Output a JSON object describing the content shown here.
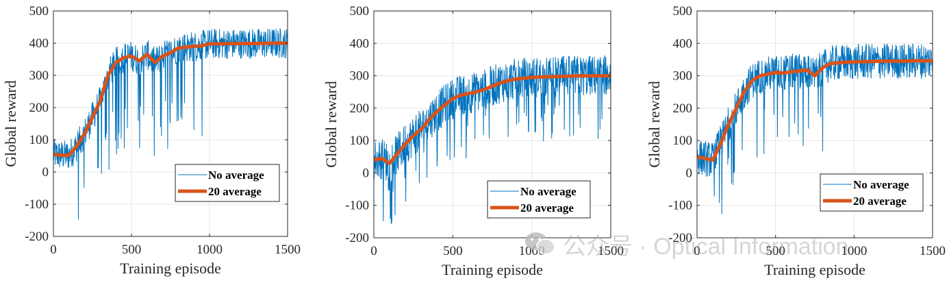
{
  "colors": {
    "raw": "#0072BD",
    "avg": "#D95319",
    "grid": "#e6e6e6",
    "axis": "#262626"
  },
  "watermark": {
    "text": "公众号 · Optical Information",
    "icon": "wechat-icon"
  },
  "chart_data": [
    {
      "type": "line",
      "xlabel": "Training episode",
      "ylabel": "Global reward",
      "xlim": [
        0,
        1500
      ],
      "ylim": [
        -200,
        500
      ],
      "xticks": [
        "0",
        "500",
        "1000",
        "1500"
      ],
      "yticks": [
        "-200",
        "-100",
        "0",
        "100",
        "200",
        "300",
        "400",
        "500"
      ],
      "grid": true,
      "legend": {
        "placement": "lower-right",
        "entries": [
          "No average",
          "20 average"
        ]
      },
      "series": [
        {
          "name": "No average",
          "style": "thin",
          "noise": 30,
          "dip_depth": 300,
          "dip_ranges": [
            [
              150,
              900
            ],
            [
              950,
              955
            ]
          ]
        },
        {
          "name": "20 average",
          "style": "thick",
          "x": [
            0,
            50,
            100,
            150,
            200,
            250,
            300,
            350,
            400,
            450,
            500,
            550,
            600,
            650,
            700,
            750,
            800,
            850,
            900,
            950,
            1000,
            1100,
            1200,
            1300,
            1400,
            1500
          ],
          "y": [
            55,
            52,
            52,
            80,
            120,
            170,
            220,
            300,
            340,
            355,
            360,
            345,
            365,
            340,
            360,
            370,
            385,
            388,
            390,
            392,
            398,
            398,
            399,
            399,
            400,
            400
          ]
        }
      ]
    },
    {
      "type": "line",
      "xlabel": "Training episode",
      "ylabel": "Global reward",
      "xlim": [
        0,
        1500
      ],
      "ylim": [
        -200,
        500
      ],
      "xticks": [
        "0",
        "500",
        "1000",
        "1500"
      ],
      "yticks": [
        "-200",
        "-100",
        "0",
        "100",
        "200",
        "300",
        "400",
        "500"
      ],
      "grid": true,
      "legend": {
        "placement": "lower-right",
        "entries": [
          "No average",
          "20 average"
        ]
      },
      "series": [
        {
          "name": "No average",
          "style": "thin",
          "noise": 40,
          "dip_depth": 200,
          "dip_ranges": [
            [
              60,
              1450
            ]
          ]
        },
        {
          "name": "20 average",
          "style": "thick",
          "x": [
            0,
            50,
            100,
            150,
            200,
            250,
            300,
            350,
            400,
            450,
            500,
            550,
            600,
            650,
            700,
            750,
            800,
            850,
            900,
            950,
            1000,
            1100,
            1200,
            1300,
            1400,
            1500
          ],
          "y": [
            40,
            45,
            30,
            60,
            90,
            115,
            135,
            165,
            190,
            210,
            230,
            240,
            245,
            250,
            258,
            268,
            278,
            285,
            290,
            292,
            295,
            297,
            298,
            300,
            300,
            300
          ]
        }
      ]
    },
    {
      "type": "line",
      "xlabel": "Training episode",
      "ylabel": "Global reward",
      "xlim": [
        0,
        1500
      ],
      "ylim": [
        -200,
        500
      ],
      "xticks": [
        "0",
        "500",
        "1000",
        "1500"
      ],
      "yticks": [
        "-200",
        "-100",
        "0",
        "100",
        "200",
        "300",
        "400",
        "500"
      ],
      "grid": true,
      "legend": {
        "placement": "lower-right",
        "entries": [
          "No average",
          "20 average"
        ]
      },
      "series": [
        {
          "name": "No average",
          "style": "thin",
          "noise": 35,
          "dip_depth": 260,
          "dip_ranges": [
            [
              100,
              800
            ],
            [
              930,
              935
            ]
          ]
        },
        {
          "name": "20 average",
          "style": "thick",
          "x": [
            0,
            50,
            100,
            150,
            200,
            250,
            300,
            350,
            400,
            450,
            500,
            550,
            600,
            650,
            700,
            750,
            800,
            850,
            900,
            950,
            1000,
            1100,
            1200,
            1300,
            1400,
            1500
          ],
          "y": [
            50,
            45,
            40,
            90,
            150,
            200,
            250,
            285,
            300,
            305,
            310,
            308,
            312,
            315,
            318,
            300,
            325,
            338,
            340,
            342,
            343,
            344,
            345,
            345,
            346,
            346
          ]
        }
      ]
    }
  ]
}
